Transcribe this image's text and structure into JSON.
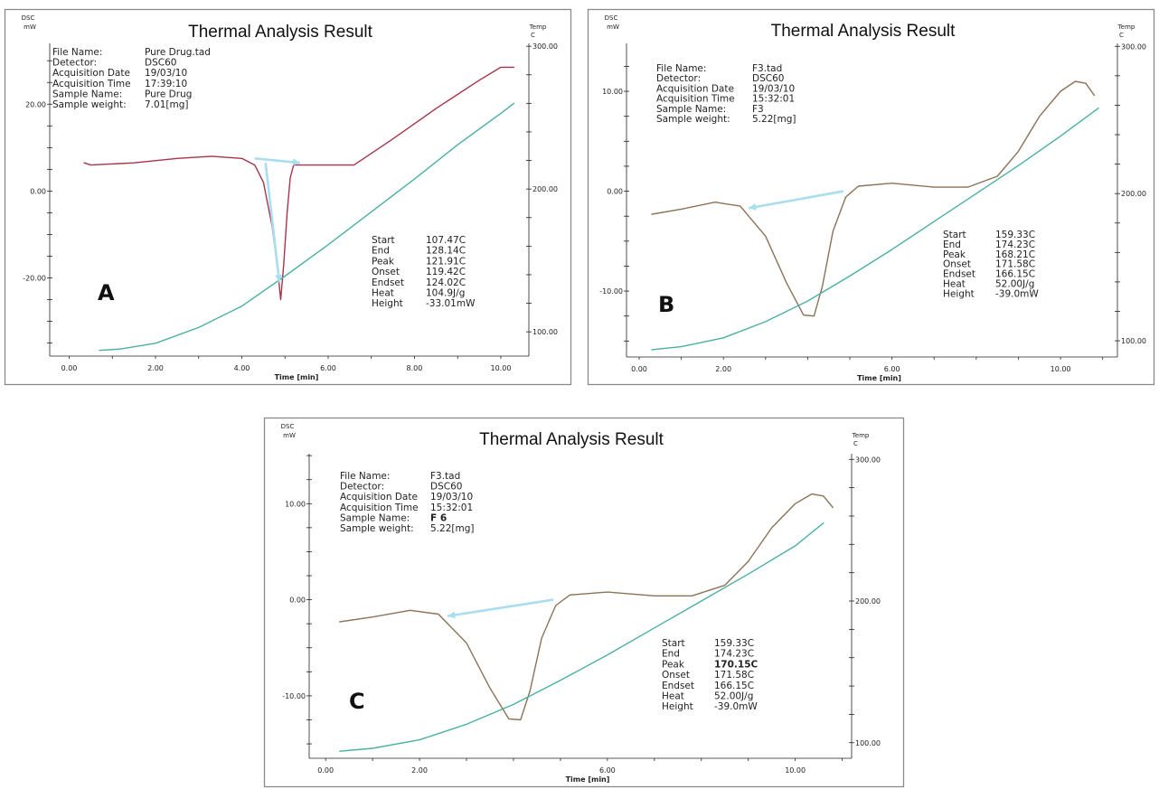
{
  "colors": {
    "temp_line": "#4ab0a2",
    "dsc_line_a": "#a7344a",
    "dsc_line_bc": "#8c7256",
    "annotation_arrow": "#a8def0",
    "frame": "#8a8a8a"
  },
  "chart_data": [
    {
      "type": "line",
      "panel_label": "A",
      "title": "Thermal Analysis Result",
      "ylabel_left": [
        "DSC",
        "mW"
      ],
      "ylabel_right": [
        "Temp",
        "C"
      ],
      "xlabel": "Time [min]",
      "x_ticks": [
        "0.00",
        "2.00",
        "4.00",
        "6.00",
        "8.00",
        "10.00"
      ],
      "y_left_ticks": [
        "20.00",
        "0.00",
        "-20.00"
      ],
      "y_right_ticks": [
        "300.00",
        "200.00",
        "100.00"
      ],
      "xlim": [
        -0.45,
        10.65
      ],
      "ylim_left": [
        -38,
        34
      ],
      "ylim_right": [
        83,
        302
      ],
      "grid": false,
      "info": [
        {
          "label": "File Name:",
          "value": "Pure Drug.tad"
        },
        {
          "label": "Detector:",
          "value": "DSC60"
        },
        {
          "label": "Acquisition Date",
          "value": "19/03/10"
        },
        {
          "label": "Acquisition Time",
          "value": "17:39:10"
        },
        {
          "label": "Sample Name:",
          "value": "Pure Drug"
        },
        {
          "label": "Sample weight:",
          "value": "7.01[mg]"
        }
      ],
      "results": [
        {
          "label": "Start",
          "value": "107.47C"
        },
        {
          "label": "End",
          "value": "128.14C"
        },
        {
          "label": "Peak",
          "value": "121.91C"
        },
        {
          "label": "Onset",
          "value": "119.42C"
        },
        {
          "label": "Endset",
          "value": "124.02C"
        },
        {
          "label": "Heat",
          "value": "104.9J/g"
        },
        {
          "label": "Height",
          "value": "-33.01mW"
        }
      ],
      "series": [
        {
          "name": "DSC",
          "axis": "left",
          "x": [
            0.35,
            0.5,
            1.5,
            2.5,
            3.3,
            4.0,
            4.3,
            4.5,
            4.7,
            4.82,
            4.9,
            4.97,
            5.05,
            5.12,
            5.2,
            5.5,
            6.0,
            6.6,
            7.5,
            8.5,
            9.5,
            10.0,
            10.3
          ],
          "y": [
            6.5,
            6,
            6.5,
            7.5,
            8,
            7.5,
            6,
            2,
            -8,
            -17,
            -25,
            -17,
            -5,
            3,
            6,
            6,
            6,
            6,
            12,
            19,
            25.5,
            28.5,
            28.5
          ]
        },
        {
          "name": "Temp",
          "axis": "right",
          "x": [
            0.7,
            1.2,
            2.0,
            3.0,
            4.0,
            5.0,
            6.0,
            7.0,
            8.0,
            9.0,
            10.0,
            10.3
          ],
          "y": [
            87,
            88,
            92,
            103,
            118,
            139,
            161,
            184,
            207,
            231,
            253,
            260
          ]
        }
      ],
      "arrows": [
        {
          "axis": "left",
          "from": [
            4.3,
            7.5
          ],
          "to": [
            5.35,
            6.5
          ]
        },
        {
          "axis": "left",
          "from": [
            4.55,
            6.5
          ],
          "to": [
            4.87,
            -21
          ]
        }
      ]
    },
    {
      "type": "line",
      "panel_label": "B",
      "title": "Thermal Analysis Result",
      "ylabel_left": [
        "DSC",
        "mW"
      ],
      "ylabel_right": [
        "Temp",
        "C"
      ],
      "xlabel": "Time [min]",
      "x_ticks": [
        "0.00",
        "2.00",
        "6.00",
        "10.00"
      ],
      "x_tick_values": [
        0,
        2,
        6,
        10
      ],
      "y_left_ticks": [
        "10.00",
        "0.00",
        "-10.00"
      ],
      "y_right_ticks": [
        "300.00",
        "200.00",
        "100.00"
      ],
      "xlim": [
        -0.3,
        11.35
      ],
      "ylim_left": [
        -16.6,
        14.8
      ],
      "ylim_right": [
        89,
        302
      ],
      "grid": false,
      "info": [
        {
          "label": "File Name:",
          "value": "F3.tad"
        },
        {
          "label": "Detector:",
          "value": "DSC60"
        },
        {
          "label": "Acquisition Date",
          "value": "19/03/10"
        },
        {
          "label": "Acquisition Time",
          "value": "15:32:01"
        },
        {
          "label": "Sample Name:",
          "value": "F3"
        },
        {
          "label": "Sample weight:",
          "value": "5.22[mg]"
        }
      ],
      "results": [
        {
          "label": "Start",
          "value": "159.33C"
        },
        {
          "label": "End",
          "value": "174.23C"
        },
        {
          "label": "Peak",
          "value": "168.21C"
        },
        {
          "label": "Onset",
          "value": "171.58C"
        },
        {
          "label": "Endset",
          "value": "166.15C"
        },
        {
          "label": "Heat",
          "value": "52.00J/g"
        },
        {
          "label": "Height",
          "value": "-39.0mW"
        }
      ],
      "series": [
        {
          "name": "DSC",
          "axis": "left",
          "x": [
            0.3,
            1.0,
            1.8,
            2.4,
            3.0,
            3.5,
            3.9,
            4.15,
            4.35,
            4.6,
            4.9,
            5.2,
            6.0,
            7.0,
            7.8,
            8.5,
            9.0,
            9.5,
            10.0,
            10.35,
            10.6,
            10.8
          ],
          "y": [
            -2.3,
            -1.8,
            -1.1,
            -1.5,
            -4.5,
            -9.2,
            -12.4,
            -12.5,
            -9.5,
            -4,
            -0.6,
            0.5,
            0.8,
            0.4,
            0.4,
            1.5,
            4,
            7.5,
            10,
            11,
            10.8,
            9.6
          ]
        },
        {
          "name": "Temp",
          "axis": "right",
          "x": [
            0.3,
            1.0,
            2.0,
            3.0,
            4.0,
            5.0,
            6.0,
            7.0,
            8.0,
            9.0,
            10.0,
            10.9
          ],
          "y": [
            94,
            96,
            102,
            113,
            127,
            144,
            162,
            181,
            200,
            219,
            239,
            258
          ]
        }
      ],
      "arrows": [
        {
          "axis": "left",
          "from": [
            4.85,
            0
          ],
          "to": [
            2.6,
            -1.7
          ]
        }
      ]
    },
    {
      "type": "line",
      "panel_label": "C",
      "title": "Thermal Analysis Result",
      "ylabel_left": [
        "DSC",
        "mW"
      ],
      "ylabel_right": [
        "Temp",
        "C"
      ],
      "xlabel": "Time [min]",
      "x_ticks": [
        "0.00",
        "2.00",
        "6.00",
        "10.00"
      ],
      "x_tick_values": [
        0,
        2,
        6,
        10
      ],
      "y_left_ticks": [
        "10.00",
        "0.00",
        "-10.00"
      ],
      "y_right_ticks": [
        "300.00",
        "200.00",
        "100.00"
      ],
      "xlim": [
        -0.35,
        11.2
      ],
      "ylim_left": [
        -16.5,
        15.2
      ],
      "ylim_right": [
        89,
        304
      ],
      "grid": false,
      "info": [
        {
          "label": "File Name:",
          "value": "F3.tad"
        },
        {
          "label": "Detector:",
          "value": "DSC60"
        },
        {
          "label": "Acquisition Date",
          "value": "19/03/10"
        },
        {
          "label": "Acquisition Time",
          "value": "15:32:01"
        },
        {
          "label": "Sample Name:",
          "value": "F 6"
        },
        {
          "label": "Sample weight:",
          "value": "5.22[mg]"
        }
      ],
      "results": [
        {
          "label": "Start",
          "value": "159.33C"
        },
        {
          "label": "End",
          "value": "174.23C"
        },
        {
          "label": "Peak",
          "value": "170.15C"
        },
        {
          "label": "Onset",
          "value": "171.58C"
        },
        {
          "label": "Endset",
          "value": "166.15C"
        },
        {
          "label": "Heat",
          "value": "52.00J/g"
        },
        {
          "label": "Height",
          "value": "-39.0mW"
        }
      ],
      "series": [
        {
          "name": "DSC",
          "axis": "left",
          "x": [
            0.3,
            1.0,
            1.8,
            2.4,
            3.0,
            3.5,
            3.9,
            4.15,
            4.35,
            4.6,
            4.9,
            5.2,
            6.0,
            7.0,
            7.8,
            8.5,
            9.0,
            9.5,
            10.0,
            10.35,
            10.6,
            10.8
          ],
          "y": [
            -2.3,
            -1.8,
            -1.1,
            -1.5,
            -4.5,
            -9.2,
            -12.4,
            -12.5,
            -9.5,
            -4,
            -0.6,
            0.5,
            0.8,
            0.4,
            0.4,
            1.5,
            4,
            7.5,
            10,
            11,
            10.8,
            9.6
          ]
        },
        {
          "name": "Temp",
          "axis": "right",
          "x": [
            0.3,
            1.0,
            2.0,
            3.0,
            4.0,
            5.0,
            6.0,
            7.0,
            8.0,
            9.0,
            10.0,
            10.6
          ],
          "y": [
            94,
            96,
            102,
            113,
            127,
            144,
            162,
            181,
            200,
            219,
            239,
            255
          ]
        }
      ],
      "arrows": [
        {
          "axis": "left",
          "from": [
            4.85,
            0
          ],
          "to": [
            2.6,
            -1.7
          ]
        }
      ]
    }
  ]
}
